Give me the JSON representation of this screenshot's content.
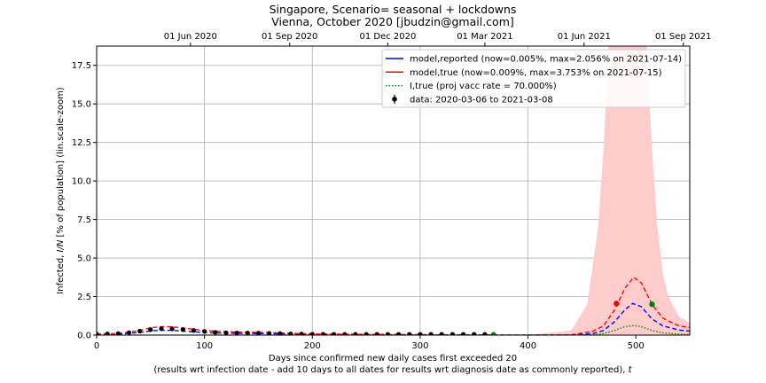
{
  "chart_data": {
    "type": "line",
    "title": "Singapore, Scenario= seasonal + lockdowns",
    "subtitle": "Vienna, October 2020 [jbudzin@gmail.com]",
    "xlabel": "Days since confirmed new daily cases first exceeded 20",
    "xlabel2": "(results wrt infection date - add 10 days to all dates for results wrt diagnosis date as commonly reported), ",
    "xlabel2_var": "t",
    "ylabel_pre": "Infected, ",
    "ylabel_var": "I/N",
    "ylabel_post": " [% of population] (lin.scale-zoom)",
    "xlim": [
      0,
      550
    ],
    "ylim": [
      0,
      18.75
    ],
    "xticks": [
      0,
      100,
      200,
      300,
      400,
      500
    ],
    "yticks": [
      0.0,
      2.5,
      5.0,
      7.5,
      10.0,
      12.5,
      15.0,
      17.5
    ],
    "yticklabels": [
      "0.0",
      "2.5",
      "5.0",
      "7.5",
      "10.0",
      "12.5",
      "15.0",
      "17.5"
    ],
    "top_axis": {
      "ticks": [
        87,
        179,
        270,
        360,
        452,
        544
      ],
      "labels": [
        "01 Jun 2020",
        "01 Sep 2020",
        "01 Dec 2020",
        "01 Mar 2021",
        "01 Jun 2021",
        "01 Sep 2021"
      ]
    },
    "grid": true,
    "legend_position": "top-right",
    "legend": [
      {
        "label": "model,reported (now=0.005%, max=2.056% on 2021-07-14)",
        "style": "solid",
        "color": "#0000ff"
      },
      {
        "label": "model,true (now=0.009%, max=3.753% on 2021-07-15)",
        "style": "solid",
        "color": "#ff0000"
      },
      {
        "label": "I,true (proj vacc rate = 70.000%)",
        "style": "dotted",
        "color": "#008000"
      },
      {
        "label": "data: 2020-03-06 to 2021-03-08",
        "style": "errorbar",
        "color": "#000000"
      }
    ],
    "series": [
      {
        "key": "reported",
        "color": "#0000ff",
        "style": "dashed",
        "x": [
          0,
          20,
          40,
          50,
          60,
          70,
          80,
          100,
          120,
          140,
          160,
          180,
          200,
          250,
          300,
          350,
          368,
          400,
          440,
          460,
          470,
          480,
          490,
          497,
          505,
          515,
          525,
          540,
          550
        ],
        "y": [
          0.05,
          0.06,
          0.17,
          0.27,
          0.32,
          0.31,
          0.26,
          0.17,
          0.12,
          0.11,
          0.09,
          0.07,
          0.05,
          0.03,
          0.02,
          0.01,
          0.005,
          0.0,
          0.01,
          0.1,
          0.3,
          0.85,
          1.65,
          2.056,
          1.85,
          1.05,
          0.6,
          0.33,
          0.26
        ]
      },
      {
        "key": "true",
        "color": "#ff0000",
        "style": "dashed",
        "x": [
          0,
          20,
          40,
          50,
          60,
          70,
          80,
          100,
          120,
          140,
          160,
          180,
          200,
          250,
          300,
          350,
          368,
          400,
          440,
          460,
          470,
          480,
          490,
          498,
          505,
          515,
          525,
          540,
          550
        ],
        "y": [
          0.08,
          0.1,
          0.3,
          0.48,
          0.55,
          0.54,
          0.46,
          0.3,
          0.22,
          0.19,
          0.16,
          0.12,
          0.08,
          0.05,
          0.03,
          0.02,
          0.009,
          0.0,
          0.02,
          0.25,
          0.6,
          1.6,
          3.05,
          3.753,
          3.4,
          2.0,
          1.1,
          0.6,
          0.5
        ]
      },
      {
        "key": "itrue",
        "color": "#008000",
        "style": "dotted",
        "x": [
          0,
          100,
          200,
          300,
          368,
          400,
          440,
          460,
          470,
          480,
          490,
          498,
          505,
          515,
          525,
          540,
          550
        ],
        "y": [
          0.0,
          0.0,
          0.0,
          0.0,
          0.0,
          0.0,
          0.0,
          0.03,
          0.1,
          0.3,
          0.55,
          0.62,
          0.55,
          0.3,
          0.15,
          0.06,
          0.03
        ]
      }
    ],
    "data_points": {
      "color": "#000000",
      "x": [
        0,
        10,
        20,
        30,
        40,
        50,
        60,
        70,
        80,
        90,
        100,
        110,
        120,
        130,
        140,
        150,
        160,
        170,
        180,
        190,
        200,
        210,
        220,
        230,
        240,
        250,
        260,
        270,
        280,
        290,
        300,
        310,
        320,
        330,
        340,
        350,
        360,
        368
      ],
      "y": [
        0.07,
        0.08,
        0.1,
        0.16,
        0.26,
        0.36,
        0.42,
        0.41,
        0.36,
        0.3,
        0.24,
        0.18,
        0.15,
        0.14,
        0.14,
        0.13,
        0.12,
        0.1,
        0.08,
        0.07,
        0.06,
        0.06,
        0.05,
        0.05,
        0.05,
        0.05,
        0.05,
        0.05,
        0.05,
        0.05,
        0.05,
        0.05,
        0.05,
        0.05,
        0.05,
        0.05,
        0.05,
        0.05
      ],
      "err": [
        0.04,
        0.04,
        0.05,
        0.07,
        0.1,
        0.13,
        0.14,
        0.14,
        0.13,
        0.11,
        0.09,
        0.07,
        0.06,
        0.06,
        0.06,
        0.05,
        0.05,
        0.04,
        0.04,
        0.04,
        0.03,
        0.03,
        0.03,
        0.03,
        0.03,
        0.03,
        0.03,
        0.03,
        0.03,
        0.03,
        0.03,
        0.03,
        0.03,
        0.03,
        0.03,
        0.03,
        0.03,
        0.03
      ]
    },
    "uncertainty_band": {
      "color": "#ffcccc",
      "x": [
        400,
        440,
        455,
        465,
        470,
        475,
        480,
        490,
        500,
        510,
        515,
        520,
        525,
        530,
        540,
        550
      ],
      "upper": [
        0.0,
        0.3,
        2.0,
        7.0,
        12.0,
        18.75,
        18.75,
        18.75,
        18.75,
        18.75,
        12.0,
        7.0,
        4.0,
        2.5,
        1.2,
        0.8
      ],
      "lower": [
        0.0,
        0.0,
        0.0,
        0.0,
        0.0,
        0.0,
        0.0,
        0.0,
        0.0,
        0.0,
        0.0,
        0.0,
        0.0,
        0.0,
        0.0,
        0.0
      ]
    },
    "markers": [
      {
        "x": 368,
        "y": 0.0,
        "color": "#008000"
      },
      {
        "x": 482,
        "y": 2.05,
        "color": "#ff0000"
      },
      {
        "x": 515,
        "y": 2.0,
        "color": "#008000"
      }
    ]
  }
}
